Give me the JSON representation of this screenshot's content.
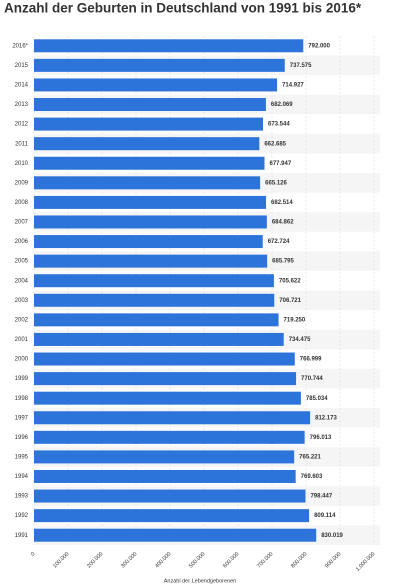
{
  "chart_data": {
    "type": "hbar",
    "title": "Anzahl der Geburten in Deutschland von 1991 bis 2016*",
    "x_label": "Anzahl der Lebendgeborenen",
    "categories": [
      "2016*",
      "2015",
      "2014",
      "2013",
      "2012",
      "2011",
      "2010",
      "2009",
      "2008",
      "2007",
      "2006",
      "2005",
      "2004",
      "2003",
      "2002",
      "2001",
      "2000",
      "1999",
      "1998",
      "1997",
      "1996",
      "1995",
      "1994",
      "1993",
      "1992",
      "1991"
    ],
    "values": [
      792000,
      737575,
      714927,
      682069,
      673544,
      662685,
      677947,
      665126,
      682514,
      684862,
      672724,
      685795,
      705622,
      706721,
      719250,
      734475,
      766999,
      770744,
      785034,
      812173,
      796013,
      765221,
      769603,
      798447,
      809114,
      830019
    ],
    "value_labels": [
      "792.000",
      "737.575",
      "714.927",
      "682.069",
      "673.544",
      "662.685",
      "677.947",
      "665.126",
      "682.514",
      "684.862",
      "672.724",
      "685.795",
      "705.622",
      "706.721",
      "719.250",
      "734.475",
      "766.999",
      "770.744",
      "785.034",
      "812.173",
      "796.013",
      "765.221",
      "769.603",
      "798.447",
      "809.114",
      "830.019"
    ],
    "color": "#2d74da",
    "xlim": [
      0,
      1000000
    ],
    "xticks": [
      0,
      {
        "value": 100000,
        "label": "100.000"
      },
      {
        "value": 200000,
        "label": "200.000"
      },
      {
        "value": 300000,
        "label": "300.000"
      },
      {
        "value": 400000,
        "label": "400.000"
      },
      {
        "value": 500000,
        "label": "500.000"
      },
      {
        "value": 600000,
        "label": "600.000"
      },
      {
        "value": 700000,
        "label": "700.000"
      },
      {
        "value": 800000,
        "label": "800.000"
      },
      {
        "value": 900000,
        "label": "900.000"
      },
      {
        "value": 1000000,
        "label": "1.000.000"
      }
    ],
    "grid": true
  }
}
